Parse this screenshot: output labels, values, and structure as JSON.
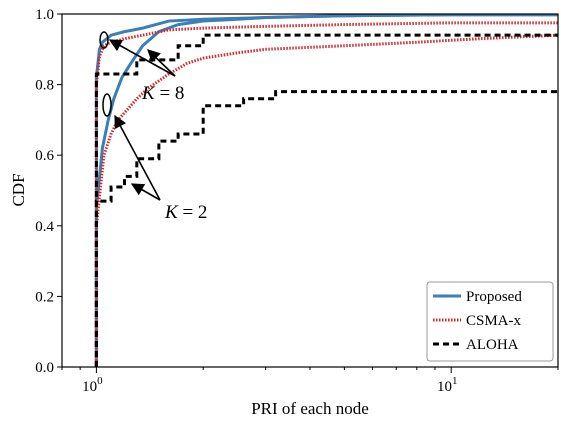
{
  "chart_data": {
    "type": "line",
    "xlabel": "PRI of each node",
    "ylabel": "CDF",
    "xscale": "log",
    "xlim": [
      0.8,
      20
    ],
    "ylim": [
      0.0,
      1.0
    ],
    "x_ticks": [
      {
        "value": 1,
        "label": "10^0",
        "base": "10",
        "exp": "0"
      },
      {
        "value": 10,
        "label": "10^1",
        "base": "10",
        "exp": "1"
      }
    ],
    "y_ticks": [
      "0.0",
      "0.2",
      "0.4",
      "0.6",
      "0.8",
      "1.0"
    ],
    "legend": {
      "position": "bottom-right",
      "entries": [
        {
          "name": "Proposed",
          "color": "#3a7fb5",
          "style": "solid"
        },
        {
          "name": "CSMA-x",
          "color": "#d62728",
          "style": "dotted"
        },
        {
          "name": "ALOHA",
          "color": "#000000",
          "style": "dashed"
        }
      ]
    },
    "annotations": [
      {
        "text": "K = 8",
        "var": "K",
        "rest": " = 8"
      },
      {
        "text": "K = 2",
        "var": "K",
        "rest": " = 2"
      }
    ],
    "series": [
      {
        "name": "Proposed",
        "group": "K = 8",
        "color": "#3a7fb5",
        "style": "solid",
        "x": [
          1.0,
          1.0,
          1.02,
          1.04,
          1.07,
          1.1,
          1.2,
          1.35,
          1.6,
          2.0,
          3.0,
          5.0,
          10.0,
          20.0
        ],
        "y": [
          0.0,
          0.82,
          0.9,
          0.92,
          0.93,
          0.94,
          0.95,
          0.96,
          0.98,
          0.985,
          0.99,
          0.995,
          0.998,
          0.998
        ]
      },
      {
        "name": "Proposed",
        "group": "K = 2",
        "color": "#3a7fb5",
        "style": "solid",
        "x": [
          1.0,
          1.0,
          1.04,
          1.08,
          1.12,
          1.18,
          1.25,
          1.35,
          1.5,
          1.7,
          2.0,
          2.5,
          3.0,
          5.0,
          10.0,
          20.0
        ],
        "y": [
          0.0,
          0.45,
          0.62,
          0.7,
          0.76,
          0.82,
          0.86,
          0.91,
          0.95,
          0.97,
          0.98,
          0.985,
          0.99,
          0.995,
          0.998,
          0.998
        ]
      },
      {
        "name": "CSMA-x",
        "group": "K = 8",
        "color": "#d62728",
        "style": "dotted",
        "x": [
          1.0,
          1.0,
          1.02,
          1.05,
          1.1,
          1.2,
          1.35,
          1.6,
          2.0,
          3.0,
          5.0,
          10.0,
          20.0
        ],
        "y": [
          0.0,
          0.8,
          0.88,
          0.91,
          0.92,
          0.93,
          0.94,
          0.955,
          0.96,
          0.965,
          0.97,
          0.975,
          0.975
        ]
      },
      {
        "name": "CSMA-x",
        "group": "K = 2",
        "color": "#d62728",
        "style": "dotted",
        "x": [
          1.0,
          1.0,
          1.05,
          1.1,
          1.15,
          1.2,
          1.3,
          1.4,
          1.6,
          1.8,
          2.0,
          2.5,
          3.0,
          5.0,
          8.0,
          12.0,
          20.0
        ],
        "y": [
          0.0,
          0.4,
          0.6,
          0.66,
          0.7,
          0.72,
          0.76,
          0.79,
          0.83,
          0.86,
          0.875,
          0.89,
          0.9,
          0.91,
          0.92,
          0.93,
          0.94
        ]
      },
      {
        "name": "ALOHA",
        "group": "K = 8",
        "color": "#000000",
        "style": "dashed",
        "x": [
          1.0,
          1.0,
          1.3,
          1.3,
          1.7,
          1.7,
          2.0,
          2.0,
          20.0
        ],
        "y": [
          0.0,
          0.83,
          0.83,
          0.87,
          0.87,
          0.91,
          0.91,
          0.94,
          0.94
        ]
      },
      {
        "name": "ALOHA",
        "group": "K = 2",
        "color": "#000000",
        "style": "dashed",
        "x": [
          1.0,
          1.0,
          1.1,
          1.1,
          1.2,
          1.2,
          1.3,
          1.3,
          1.5,
          1.5,
          1.7,
          1.7,
          2.0,
          2.0,
          2.6,
          2.6,
          3.2,
          3.2,
          20.0
        ],
        "y": [
          0.0,
          0.47,
          0.47,
          0.51,
          0.51,
          0.54,
          0.54,
          0.59,
          0.59,
          0.64,
          0.64,
          0.66,
          0.66,
          0.74,
          0.74,
          0.76,
          0.76,
          0.78,
          0.78
        ]
      }
    ]
  }
}
